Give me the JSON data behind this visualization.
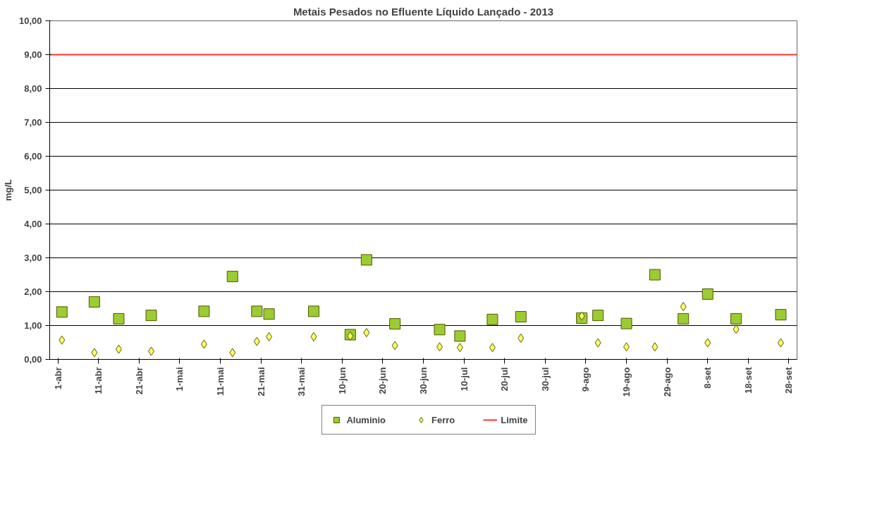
{
  "chart_data": {
    "type": "scatter",
    "title": "Metais Pesados no Efluente Líquido Lançado - 2013",
    "ylabel": "mg/L",
    "x": [
      "2013-04-02",
      "2013-04-10",
      "2013-04-16",
      "2013-04-24",
      "2013-05-07",
      "2013-05-14",
      "2013-05-20",
      "2013-05-23",
      "2013-06-03",
      "2013-06-12",
      "2013-06-16",
      "2013-06-23",
      "2013-07-04",
      "2013-07-09",
      "2013-07-17",
      "2013-07-24",
      "2013-08-08",
      "2013-08-12",
      "2013-08-19",
      "2013-08-26",
      "2013-09-02",
      "2013-09-08",
      "2013-09-15",
      "2013-09-26"
    ],
    "series": [
      {
        "name": "Aluminio",
        "color": "#9acd32",
        "marker": "square",
        "values": [
          1.4,
          1.7,
          1.2,
          1.3,
          1.42,
          2.45,
          1.42,
          1.34,
          1.42,
          0.73,
          2.94,
          1.05,
          0.88,
          0.69,
          1.18,
          1.26,
          1.22,
          1.3,
          1.06,
          2.5,
          1.2,
          1.93,
          1.2,
          1.32
        ]
      },
      {
        "name": "Ferro",
        "color": "#ffff66",
        "marker": "diamond",
        "values": [
          0.57,
          0.2,
          0.3,
          0.24,
          0.45,
          0.2,
          0.53,
          0.67,
          0.67,
          0.69,
          0.79,
          0.41,
          0.37,
          0.35,
          0.35,
          0.63,
          1.28,
          0.49,
          0.37,
          0.37,
          1.56,
          0.49,
          0.89,
          0.49
        ]
      },
      {
        "name": "Limite",
        "color": "#ff3333",
        "type": "line",
        "marker": "none",
        "x": [
          "2013-03-30",
          "2013-09-30"
        ],
        "values": [
          9,
          9
        ]
      }
    ],
    "xlim": [
      "2013-03-30",
      "2013-09-30"
    ],
    "xticks": [
      {
        "value": "2013-04-01",
        "label": "1-abr"
      },
      {
        "value": "2013-04-11",
        "label": "11-abr"
      },
      {
        "value": "2013-04-21",
        "label": "21-abr"
      },
      {
        "value": "2013-05-01",
        "label": "1-mai"
      },
      {
        "value": "2013-05-11",
        "label": "11-mai"
      },
      {
        "value": "2013-05-21",
        "label": "21-mai"
      },
      {
        "value": "2013-05-31",
        "label": "31-mai"
      },
      {
        "value": "2013-06-10",
        "label": "10-jun"
      },
      {
        "value": "2013-06-20",
        "label": "20-jun"
      },
      {
        "value": "2013-06-30",
        "label": "30-jun"
      },
      {
        "value": "2013-07-10",
        "label": "10-jul"
      },
      {
        "value": "2013-07-20",
        "label": "20-jul"
      },
      {
        "value": "2013-07-30",
        "label": "30-jul"
      },
      {
        "value": "2013-08-09",
        "label": "9-ago"
      },
      {
        "value": "2013-08-19",
        "label": "19-ago"
      },
      {
        "value": "2013-08-29",
        "label": "29-ago"
      },
      {
        "value": "2013-09-08",
        "label": "8-set"
      },
      {
        "value": "2013-09-18",
        "label": "18-set"
      },
      {
        "value": "2013-09-28",
        "label": "28-set"
      }
    ],
    "ylim": [
      0,
      10
    ],
    "yticks": [
      {
        "value": 0,
        "label": "0,00"
      },
      {
        "value": 1,
        "label": "1,00"
      },
      {
        "value": 2,
        "label": "2,00"
      },
      {
        "value": 3,
        "label": "3,00"
      },
      {
        "value": 4,
        "label": "4,00"
      },
      {
        "value": 5,
        "label": "5,00"
      },
      {
        "value": 6,
        "label": "6,00"
      },
      {
        "value": 7,
        "label": "7,00"
      },
      {
        "value": 8,
        "label": "8,00"
      },
      {
        "value": 9,
        "label": "9,00"
      },
      {
        "value": 10,
        "label": "10,00"
      }
    ],
    "grid": "y",
    "legend": "bottom"
  }
}
